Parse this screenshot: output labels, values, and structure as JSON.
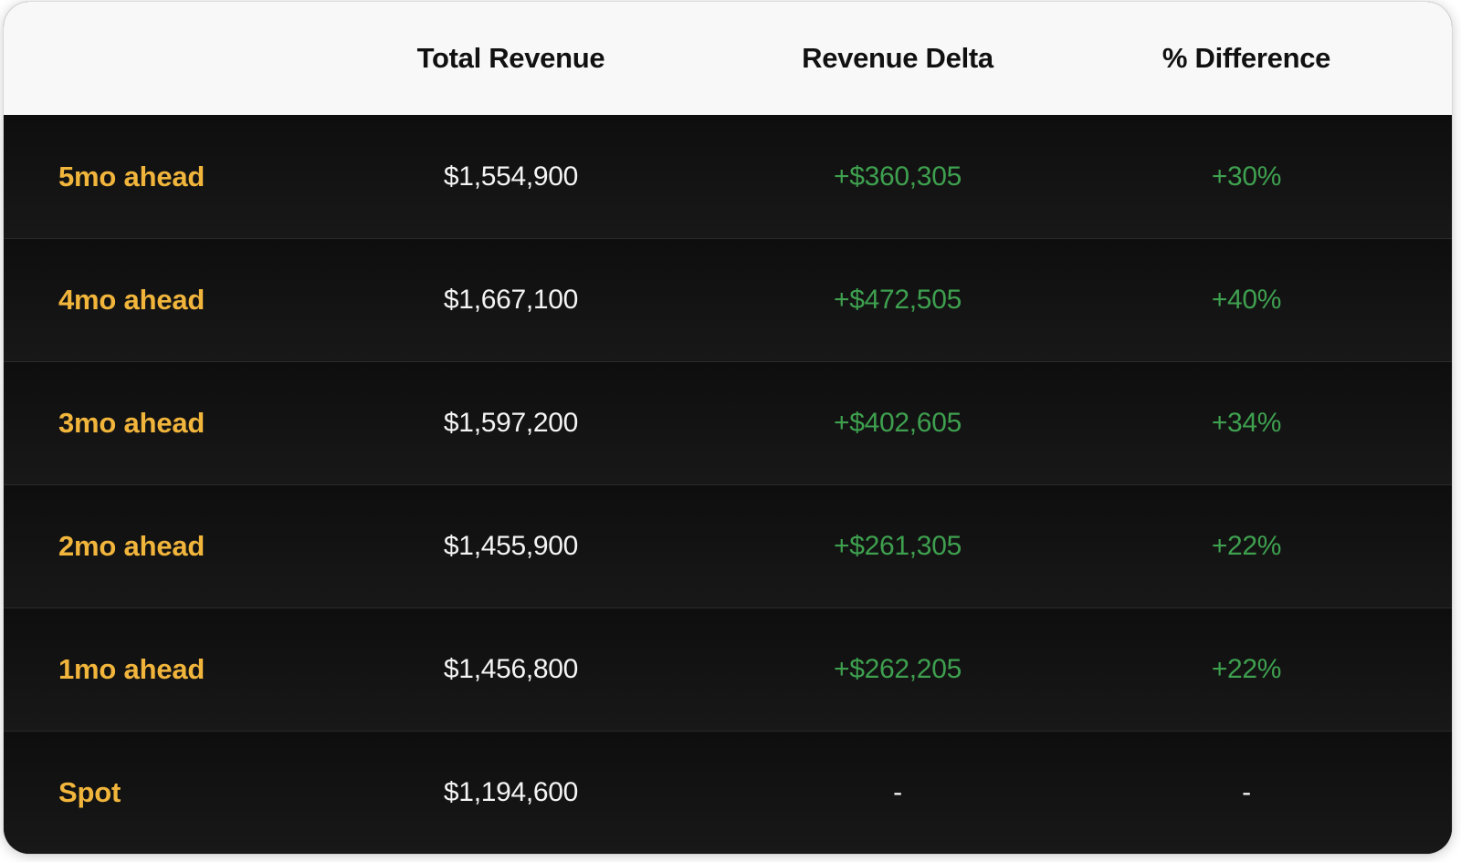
{
  "table": {
    "headers": [
      "Total Revenue",
      "Revenue Delta",
      "% Difference"
    ],
    "rows": [
      {
        "label": "5mo ahead",
        "total_revenue": "$1,554,900",
        "revenue_delta": "+$360,305",
        "pct_difference": "+30%"
      },
      {
        "label": "4mo ahead",
        "total_revenue": "$1,667,100",
        "revenue_delta": "+$472,505",
        "pct_difference": "+40%"
      },
      {
        "label": "3mo ahead",
        "total_revenue": "$1,597,200",
        "revenue_delta": "+$402,605",
        "pct_difference": "+34%"
      },
      {
        "label": "2mo ahead",
        "total_revenue": "$1,455,900",
        "revenue_delta": "+$261,305",
        "pct_difference": "+22%"
      },
      {
        "label": "1mo ahead",
        "total_revenue": "$1,456,800",
        "revenue_delta": "+$262,205",
        "pct_difference": "+22%"
      },
      {
        "label": "Spot",
        "total_revenue": "$1,194,600",
        "revenue_delta": "-",
        "pct_difference": "-"
      }
    ]
  },
  "chart_data": {
    "type": "table",
    "title": "",
    "columns": [
      "",
      "Total Revenue",
      "Revenue Delta",
      "% Difference"
    ],
    "rows": [
      [
        "5mo ahead",
        1554900,
        360305,
        30
      ],
      [
        "4mo ahead",
        1667100,
        472505,
        40
      ],
      [
        "3mo ahead",
        1597200,
        402605,
        34
      ],
      [
        "2mo ahead",
        1455900,
        261305,
        22
      ],
      [
        "1mo ahead",
        1456800,
        262205,
        22
      ],
      [
        "Spot",
        1194600,
        null,
        null
      ]
    ]
  },
  "colors": {
    "accent_yellow": "#F1B53C",
    "positive_green": "#3EA04F",
    "header_bg": "#F8F8F8",
    "header_text": "#111111",
    "row_bg_top": "#0E0E0E",
    "row_bg_bottom": "#181818",
    "row_divider": "#2A2A2A",
    "value_text": "#F4F4F4"
  }
}
